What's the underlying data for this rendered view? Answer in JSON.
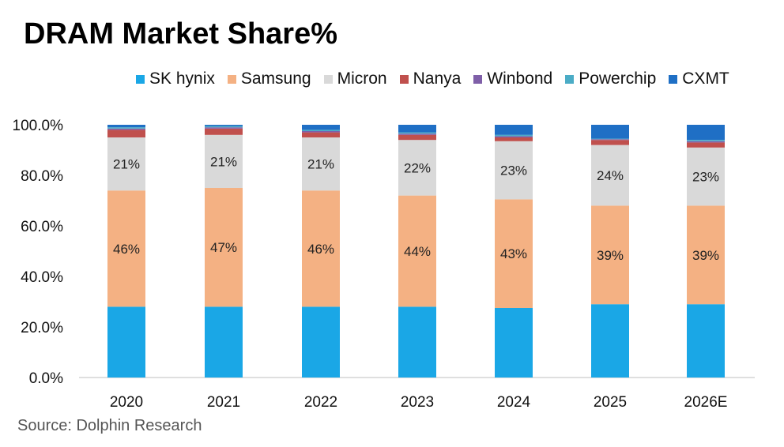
{
  "chart_data": {
    "type": "bar",
    "stacked": true,
    "title": "DRAM Market Share%",
    "categories": [
      "2020",
      "2021",
      "2022",
      "2023",
      "2024",
      "2025",
      "2026E"
    ],
    "ylim": [
      0,
      100
    ],
    "yticks": [
      "0.0%",
      "20.0%",
      "40.0%",
      "60.0%",
      "80.0%",
      "100.0%"
    ],
    "grid": false,
    "legend_position": "top",
    "series": [
      {
        "name": "SK hynix",
        "color": "#1aa7e6",
        "values": [
          28,
          28,
          28,
          28,
          27.5,
          29,
          29
        ]
      },
      {
        "name": "Samsung",
        "color": "#f4b183",
        "values": [
          46,
          47,
          46,
          44,
          43,
          39,
          39
        ],
        "labels": [
          "46%",
          "47%",
          "46%",
          "44%",
          "43%",
          "39%",
          "39%"
        ]
      },
      {
        "name": "Micron",
        "color": "#d9d9d9",
        "values": [
          21,
          21,
          21,
          22,
          23,
          24,
          23
        ],
        "labels": [
          "21%",
          "21%",
          "21%",
          "22%",
          "23%",
          "24%",
          "23%"
        ]
      },
      {
        "name": "Nanya",
        "color": "#c0504d",
        "values": [
          3,
          2.5,
          2,
          2,
          1.5,
          2,
          2
        ]
      },
      {
        "name": "Winbond",
        "color": "#7f5fa8",
        "values": [
          0.5,
          0.5,
          0.5,
          0.5,
          0.5,
          0.3,
          0.5
        ]
      },
      {
        "name": "Powerchip",
        "color": "#4bacc6",
        "values": [
          0.5,
          0.5,
          0.5,
          0.5,
          0.5,
          0.2,
          0.5
        ]
      },
      {
        "name": "CXMT",
        "color": "#1f6fc5",
        "values": [
          1,
          0.5,
          2,
          3,
          4,
          5.5,
          6
        ]
      }
    ],
    "source": "Source: Dolphin Research"
  }
}
